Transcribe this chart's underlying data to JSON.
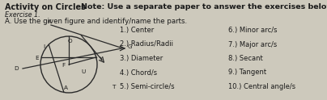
{
  "title": "Activity on Circles",
  "note": "Note: Use a separate paper to answer the exercises below",
  "subtitle": "Exercise 1.",
  "instruction": "A. Use the given figure and identify/name the parts.",
  "left_items": [
    "1.) Center",
    "2.) Radius/Radii",
    "3.) Diameter",
    "4.) Chord/s",
    "5.) Semi-circle/s"
  ],
  "right_items": [
    "6.) Minor arc/s",
    "7.) Major arc/s",
    "8.) Secant",
    "9.) Tangent",
    "10.) Central angle/s"
  ],
  "bg_color": "#cdc9bc",
  "text_color": "#1a1a1a",
  "circle_color": "#2a2a2a"
}
